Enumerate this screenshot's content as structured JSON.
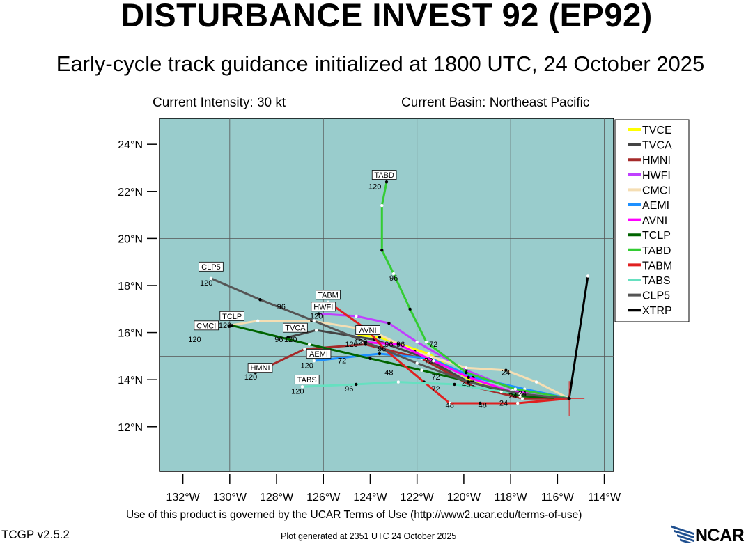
{
  "page": {
    "title": "DISTURBANCE INVEST 92 (EP92)",
    "subtitle": "Early-cycle track guidance initialized at 1800 UTC, 24 October 2025",
    "current_intensity": "Current Intensity: 30 kt",
    "current_basin": "Current Basin: Northeast Pacific",
    "terms": "Use of this product is governed by the UCAR Terms of Use (http://www2.ucar.edu/terms-of-use)",
    "version": "TCGP v2.5.2",
    "generated": "Plot generated at 2351 UTC   24 October 2025",
    "logo_text": "NCAR"
  },
  "chart_data": {
    "type": "line",
    "map_background": "#99cccc",
    "grid": true,
    "xlim": [
      -133,
      -113.6
    ],
    "ylim": [
      10.1,
      25.1
    ],
    "x_ticks": [
      -132,
      -130,
      -128,
      -126,
      -124,
      -122,
      -120,
      -118,
      -116,
      -114
    ],
    "x_tick_labels": [
      "132°W",
      "130°W",
      "128°W",
      "126°W",
      "124°W",
      "122°W",
      "120°W",
      "118°W",
      "116°W",
      "114°W"
    ],
    "y_ticks": [
      12,
      14,
      16,
      18,
      20,
      22,
      24
    ],
    "y_tick_labels": [
      "12°N",
      "14°N",
      "16°N",
      "18°N",
      "20°N",
      "22°N",
      "24°N"
    ],
    "gridlines_lon": [
      -130,
      -126,
      -122,
      -118,
      -114
    ],
    "gridlines_lat": [
      15,
      20
    ],
    "origin": {
      "lon": -115.5,
      "lat": 13.2
    },
    "legend_placement": "right",
    "series": [
      {
        "name": "TVCE",
        "color": "#ffff00",
        "lon": [
          -115.5,
          -117.5,
          -119.6,
          -121.5,
          -123.6,
          -124.6
        ],
        "lat": [
          13.2,
          13.3,
          13.9,
          15.1,
          15.8,
          15.9
        ],
        "hour_labels": [
          {
            "h": "24",
            "lon": -117.9,
            "lat": 13.2
          },
          {
            "h": "48",
            "lon": -119.9,
            "lat": 13.7
          },
          {
            "h": "72",
            "lon": -121.5,
            "lat": 14.7
          },
          {
            "h": "96",
            "lon": -123.5,
            "lat": 15.2
          },
          {
            "h": "120",
            "lon": -124.4,
            "lat": 15.5
          }
        ]
      },
      {
        "name": "TVCA",
        "color": "#444444",
        "lon": [
          -115.5,
          -117.7,
          -119.8,
          -121.6,
          -123.8,
          -126.3,
          -127.5
        ],
        "lat": [
          13.2,
          13.4,
          13.9,
          14.9,
          15.7,
          16.1,
          15.8
        ],
        "hour_labels": [
          {
            "h": "120",
            "lon": -127.4,
            "lat": 15.6
          }
        ],
        "end_label": "TVCA",
        "end_label_pos": {
          "lon": -127.2,
          "lat": 16.1
        }
      },
      {
        "name": "HMNI",
        "color": "#a52a2a",
        "lon": [
          -115.5,
          -117.5,
          -119.6,
          -121.8,
          -124.2,
          -126.8,
          -128.9
        ],
        "lat": [
          13.2,
          13.2,
          13.7,
          14.9,
          15.5,
          15.3,
          14.3
        ],
        "hour_labels": [
          {
            "h": "24",
            "lon": -117.5,
            "lat": 13.3
          },
          {
            "h": "120",
            "lon": -129.1,
            "lat": 14.0
          }
        ],
        "end_label": "HMNI",
        "end_label_pos": {
          "lon": -128.7,
          "lat": 14.4
        }
      },
      {
        "name": "HWFI",
        "color": "#c040ff",
        "lon": [
          -115.5,
          -117.9,
          -119.9,
          -122.0,
          -123.2,
          -124.6,
          -126.2
        ],
        "lat": [
          13.2,
          13.6,
          14.4,
          15.6,
          16.4,
          16.7,
          16.8
        ],
        "hour_labels": [
          {
            "h": "96",
            "lon": -122.7,
            "lat": 15.4
          },
          {
            "h": "120",
            "lon": -126.3,
            "lat": 16.6
          }
        ],
        "end_label": "HWFI",
        "end_label_pos": {
          "lon": -126.0,
          "lat": 17.0
        }
      },
      {
        "name": "CMCI",
        "color": "#f5deb3",
        "lon": [
          -115.5,
          -116.9,
          -118.2,
          -119.9,
          -122.1,
          -124.0,
          -126.5,
          -128.8,
          -130.0
        ],
        "lat": [
          13.2,
          13.9,
          14.4,
          14.5,
          15.2,
          16.1,
          16.5,
          16.5,
          16.3
        ],
        "hour_labels": [
          {
            "h": "24",
            "lon": -118.2,
            "lat": 14.2
          },
          {
            "h": "120",
            "lon": -131.5,
            "lat": 15.6
          }
        ],
        "end_label": "CMCI",
        "end_label_pos": {
          "lon": -131.0,
          "lat": 16.2
        }
      },
      {
        "name": "AEMI",
        "color": "#1e90ff",
        "lon": [
          -115.5,
          -117.4,
          -119.6,
          -121.4,
          -123.6,
          -126.4
        ],
        "lat": [
          13.2,
          13.6,
          14.1,
          14.9,
          15.1,
          14.8
        ],
        "hour_labels": [
          {
            "h": "72",
            "lon": -125.2,
            "lat": 14.7
          },
          {
            "h": "120",
            "lon": -126.7,
            "lat": 14.5
          }
        ],
        "end_label": "AEMI",
        "end_label_pos": {
          "lon": -126.2,
          "lat": 15.0
        }
      },
      {
        "name": "AVNI",
        "color": "#ff00ff",
        "lon": [
          -115.5,
          -118.0,
          -119.8,
          -121.3,
          -122.8,
          -124.3
        ],
        "lat": [
          13.2,
          13.5,
          14.1,
          14.8,
          15.5,
          15.6
        ],
        "hour_labels": [
          {
            "h": "96",
            "lon": -123.2,
            "lat": 15.4
          },
          {
            "h": "120",
            "lon": -124.8,
            "lat": 15.4
          }
        ],
        "end_label": "AVNI",
        "end_label_pos": {
          "lon": -124.1,
          "lat": 16.0
        }
      },
      {
        "name": "TCLP",
        "color": "#006400",
        "lon": [
          -115.5,
          -117.6,
          -119.7,
          -121.8,
          -124.0,
          -126.6,
          -129.9
        ],
        "lat": [
          13.2,
          13.3,
          13.9,
          14.4,
          14.9,
          15.5,
          16.3
        ],
        "hour_labels": [
          {
            "h": "48",
            "lon": -123.2,
            "lat": 14.2
          },
          {
            "h": "72",
            "lon": -121.2,
            "lat": 14.0
          },
          {
            "h": "96",
            "lon": -127.9,
            "lat": 15.6
          },
          {
            "h": "120",
            "lon": -130.2,
            "lat": 16.2
          }
        ],
        "end_label": "TCLP",
        "end_label_pos": {
          "lon": -129.9,
          "lat": 16.6
        }
      },
      {
        "name": "TABD",
        "color": "#33cc33",
        "lon": [
          -115.5,
          -117.8,
          -119.9,
          -121.6,
          -122.3,
          -123.0,
          -123.5,
          -123.5,
          -123.3
        ],
        "lat": [
          13.2,
          13.6,
          14.3,
          15.6,
          17.0,
          18.5,
          19.5,
          21.4,
          22.4
        ],
        "hour_labels": [
          {
            "h": "72",
            "lon": -121.3,
            "lat": 15.4
          },
          {
            "h": "96",
            "lon": -123.0,
            "lat": 18.2
          },
          {
            "h": "120",
            "lon": -123.8,
            "lat": 22.1
          }
        ],
        "end_label": "TABD",
        "end_label_pos": {
          "lon": -123.4,
          "lat": 22.6
        }
      },
      {
        "name": "TABM",
        "color": "#e02020",
        "lon": [
          -115.5,
          -117.7,
          -119.3,
          -120.6,
          -121.7,
          -123.4,
          -124.1,
          -125.8
        ],
        "lat": [
          13.2,
          13.0,
          13.0,
          13.0,
          13.9,
          15.3,
          16.1,
          17.3
        ],
        "hour_labels": [
          {
            "h": "24",
            "lon": -118.3,
            "lat": 12.9
          },
          {
            "h": "48",
            "lon": -120.6,
            "lat": 12.8
          },
          {
            "h": "48",
            "lon": -119.2,
            "lat": 12.8
          }
        ],
        "end_label": "TABM",
        "end_label_pos": {
          "lon": -125.8,
          "lat": 17.5
        }
      },
      {
        "name": "TABS",
        "color": "#66e0c0",
        "lon": [
          -115.5,
          -118.4,
          -120.4,
          -122.8,
          -124.6,
          -126.9
        ],
        "lat": [
          13.2,
          13.5,
          13.8,
          13.9,
          13.8,
          13.7
        ],
        "hour_labels": [
          {
            "h": "72",
            "lon": -121.2,
            "lat": 13.5
          },
          {
            "h": "96",
            "lon": -124.9,
            "lat": 13.5
          },
          {
            "h": "120",
            "lon": -127.1,
            "lat": 13.4
          }
        ],
        "end_label": "TABS",
        "end_label_pos": {
          "lon": -126.7,
          "lat": 13.9
        }
      },
      {
        "name": "CLP5",
        "color": "#555555",
        "lon": [
          -115.5,
          -117.6,
          -119.8,
          -122.0,
          -124.2,
          -126.4,
          -128.7,
          -130.8
        ],
        "lat": [
          13.2,
          13.4,
          13.9,
          14.7,
          15.6,
          16.5,
          17.4,
          18.3
        ],
        "hour_labels": [
          {
            "h": "96",
            "lon": -127.8,
            "lat": 17.0
          },
          {
            "h": "120",
            "lon": -131.0,
            "lat": 18.0
          }
        ],
        "end_label": "CLP5",
        "end_label_pos": {
          "lon": -130.8,
          "lat": 18.7
        }
      },
      {
        "name": "XTRP",
        "color": "#000000",
        "lon": [
          -115.5,
          -114.7
        ],
        "lat": [
          13.2,
          18.4
        ],
        "hour_labels": []
      }
    ]
  }
}
